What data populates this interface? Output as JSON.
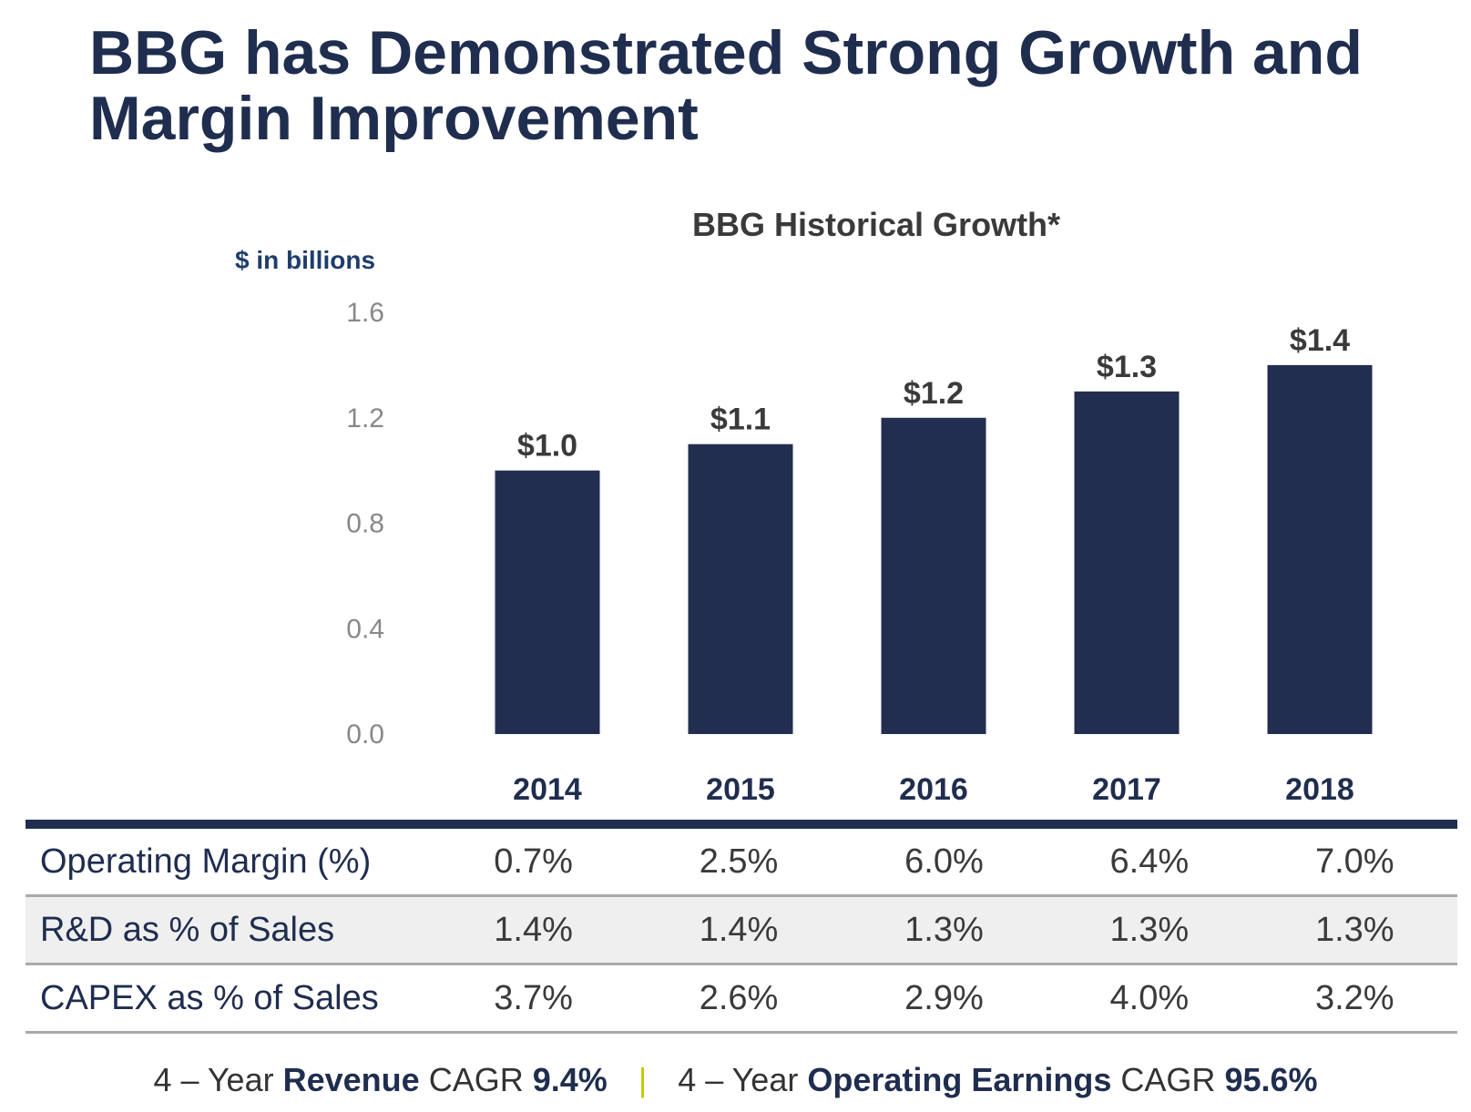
{
  "title": "BBG has Demonstrated Strong Growth and Margin Improvement",
  "chart_data": {
    "type": "bar",
    "title": "BBG Historical Growth*",
    "unit_label": "$ in billions",
    "categories": [
      "2014",
      "2015",
      "2016",
      "2017",
      "2018"
    ],
    "values": [
      1.0,
      1.1,
      1.2,
      1.3,
      1.4
    ],
    "data_labels": [
      "$1.0",
      "$1.1",
      "$1.2",
      "$1.3",
      "$1.4"
    ],
    "yticks": [
      "0.0",
      "0.4",
      "0.8",
      "1.2",
      "1.6"
    ],
    "ylim": [
      0,
      1.6
    ],
    "grid": false,
    "bar_color": "#222e4f"
  },
  "metrics": [
    {
      "label": "Operating Margin (%)",
      "values": [
        "0.7%",
        "2.5%",
        "6.0%",
        "6.4%",
        "7.0%"
      ]
    },
    {
      "label": "R&D as % of Sales",
      "values": [
        "1.4%",
        "1.4%",
        "1.3%",
        "1.3%",
        "1.3%"
      ]
    },
    {
      "label": "CAPEX as % of Sales",
      "values": [
        "3.7%",
        "2.6%",
        "2.9%",
        "4.0%",
        "3.2%"
      ]
    }
  ],
  "footer": {
    "left_prefix": "4 – Year",
    "left_bold": "Revenue",
    "left_mid": "CAGR",
    "left_value": "9.4%",
    "separator": "|",
    "right_prefix": "4 – Year",
    "right_bold": "Operating Earnings",
    "right_mid": "CAGR",
    "right_value": "95.6%"
  }
}
